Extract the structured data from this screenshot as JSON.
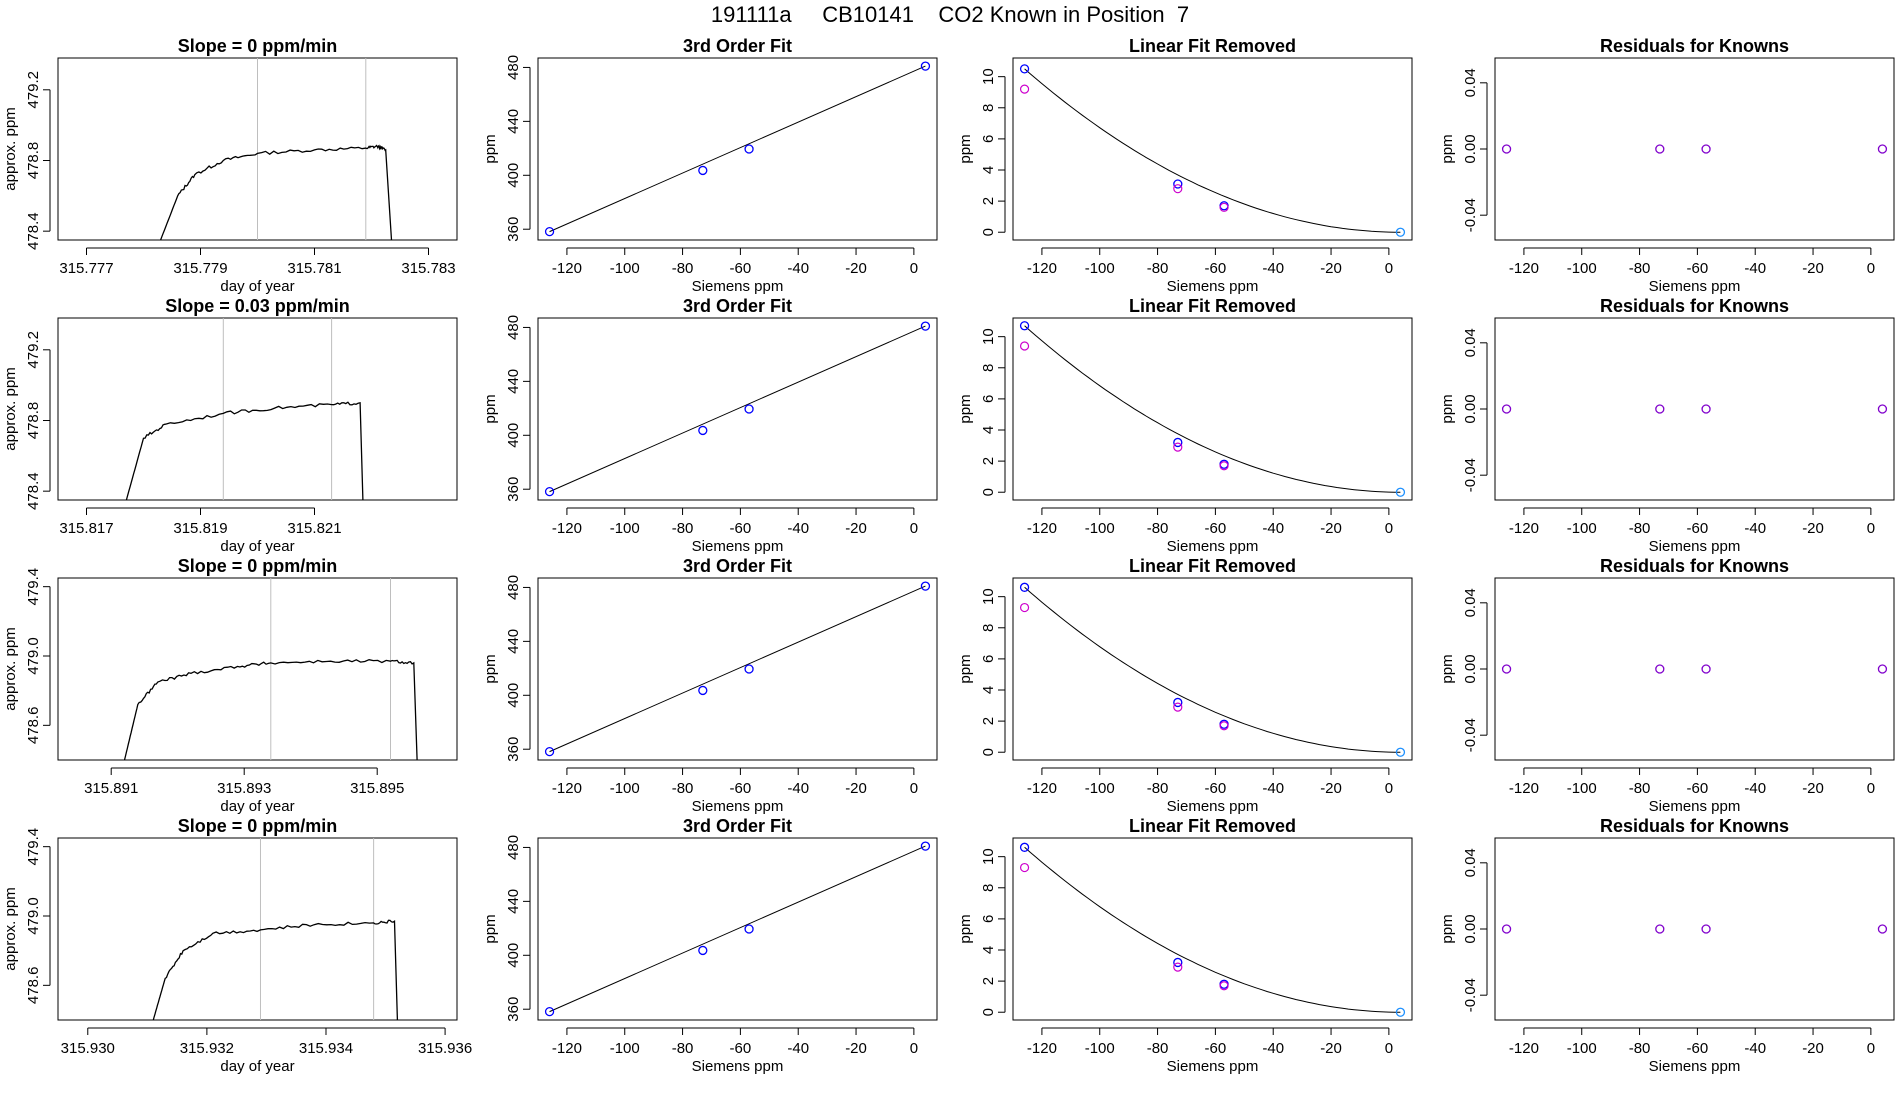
{
  "figure": {
    "title": "191111a     CB10141    CO2 Known in Position  7"
  },
  "colors": {
    "trace": "#000000",
    "vline": "#bebebe",
    "blue": "#0000ff",
    "magenta": "#cd00cd",
    "cyan": "#1e90ff",
    "purple": "#8000cc"
  },
  "chart_data": [
    {
      "type": "line",
      "row": 1,
      "col": 1,
      "title": "Slope =  0  ppm/min",
      "xlabel": "day of year",
      "ylabel": "approx. ppm",
      "xlim": [
        315.7765,
        315.7835
      ],
      "ylim": [
        478.35,
        479.38
      ],
      "xticks": [
        315.777,
        315.779,
        315.781,
        315.783
      ],
      "xtick_labels": [
        "315.777",
        "315.779",
        "315.781",
        "315.783"
      ],
      "yticks": [
        478.4,
        478.8,
        479.2
      ],
      "ytick_labels": [
        "478.4",
        "478.8",
        "479.2"
      ],
      "vlines": [
        315.78,
        315.7819
      ],
      "series": [
        {
          "values": [
            [
              315.7783,
              478.35
            ],
            [
              315.7786,
              478.6
            ],
            [
              315.7789,
              478.72
            ],
            [
              315.7794,
              478.8
            ],
            [
              315.78,
              478.84
            ],
            [
              315.781,
              478.86
            ],
            [
              315.7819,
              478.87
            ],
            [
              315.7821,
              478.88
            ],
            [
              315.78225,
              478.86
            ],
            [
              315.78235,
              478.35
            ]
          ]
        }
      ]
    },
    {
      "type": "scatter",
      "row": 1,
      "col": 2,
      "title": "3rd Order Fit",
      "xlabel": "Siemens ppm",
      "ylabel": "ppm",
      "xlim": [
        -130,
        8
      ],
      "ylim": [
        352,
        487
      ],
      "xticks": [
        -120,
        -100,
        -80,
        -60,
        -40,
        -20,
        0
      ],
      "xtick_labels": [
        "-120",
        "-100",
        "-80",
        "-60",
        "-40",
        "-20",
        "0"
      ],
      "yticks": [
        360,
        400,
        440,
        480
      ],
      "ytick_labels": [
        "360",
        "400",
        "440",
        "480"
      ],
      "series": [
        {
          "values": [
            [
              -126,
              358.2
            ],
            [
              -73,
              403.6
            ],
            [
              -57,
              419.5
            ],
            [
              4,
              481.0
            ]
          ]
        }
      ]
    },
    {
      "type": "scatter",
      "row": 1,
      "col": 3,
      "title": "Linear Fit Removed",
      "xlabel": "Siemens ppm",
      "ylabel": "ppm",
      "xlim": [
        -130,
        8
      ],
      "ylim": [
        -0.5,
        11.2
      ],
      "xticks": [
        -120,
        -100,
        -80,
        -60,
        -40,
        -20,
        0
      ],
      "xtick_labels": [
        "-120",
        "-100",
        "-80",
        "-60",
        "-40",
        "-20",
        "0"
      ],
      "yticks": [
        0,
        2,
        4,
        6,
        8,
        10
      ],
      "ytick_labels": [
        "0",
        "2",
        "4",
        "6",
        "8",
        "10"
      ],
      "series": [
        {
          "values": [
            [
              -126,
              10.5
            ],
            [
              -73,
              3.1
            ],
            [
              -57,
              1.7
            ],
            [
              4,
              0
            ]
          ]
        },
        {
          "values": [
            [
              -126,
              9.2
            ],
            [
              -73,
              2.8
            ],
            [
              -57,
              1.6
            ]
          ]
        }
      ]
    },
    {
      "type": "scatter",
      "row": 1,
      "col": 4,
      "title": "Residuals for Knowns",
      "xlabel": "Siemens ppm",
      "ylabel": "ppm",
      "xlim": [
        -130,
        8
      ],
      "ylim": [
        -0.055,
        0.055
      ],
      "xticks": [
        -120,
        -100,
        -80,
        -60,
        -40,
        -20,
        0
      ],
      "xtick_labels": [
        "-120",
        "-100",
        "-80",
        "-60",
        "-40",
        "-20",
        "0"
      ],
      "yticks": [
        -0.04,
        0.0,
        0.04
      ],
      "ytick_labels": [
        "-0.04",
        "0.00",
        "0.04"
      ],
      "series": [
        {
          "values": [
            [
              -126,
              0
            ],
            [
              -73,
              0
            ],
            [
              -57,
              0
            ],
            [
              4,
              0
            ]
          ]
        }
      ]
    },
    {
      "type": "line",
      "row": 2,
      "col": 1,
      "title": "Slope =  0.03  ppm/min",
      "xlabel": "day of year",
      "ylabel": "approx. ppm",
      "xlim": [
        315.8165,
        315.8235
      ],
      "ylim": [
        478.35,
        479.38
      ],
      "xticks": [
        315.817,
        315.819,
        315.821
      ],
      "xtick_labels": [
        "315.817",
        "315.819",
        "315.821"
      ],
      "vlines": [
        315.8194,
        315.8213
      ],
      "series": [
        {
          "values": [
            [
              315.8177,
              478.35
            ],
            [
              315.818,
              478.7
            ],
            [
              315.8184,
              478.78
            ],
            [
              315.8194,
              478.84
            ],
            [
              315.8203,
              478.87
            ],
            [
              315.8213,
              478.89
            ],
            [
              315.8218,
              478.9
            ],
            [
              315.82185,
              478.35
            ]
          ]
        }
      ],
      "yticks": [
        478.4,
        478.8,
        479.2
      ],
      "ytick_labels": [
        "478.4",
        "478.8",
        "479.2"
      ]
    },
    {
      "type": "scatter",
      "row": 2,
      "col": 2,
      "title": "3rd Order Fit",
      "xlabel": "Siemens ppm",
      "ylabel": "ppm",
      "xlim": [
        -130,
        8
      ],
      "ylim": [
        352,
        487
      ],
      "xticks": [
        -120,
        -100,
        -80,
        -60,
        -40,
        -20,
        0
      ],
      "xtick_labels": [
        "-120",
        "-100",
        "-80",
        "-60",
        "-40",
        "-20",
        "0"
      ],
      "yticks": [
        360,
        400,
        440,
        480
      ],
      "ytick_labels": [
        "360",
        "400",
        "440",
        "480"
      ],
      "series": [
        {
          "values": [
            [
              -126,
              358.2
            ],
            [
              -73,
              403.6
            ],
            [
              -57,
              419.5
            ],
            [
              4,
              481.0
            ]
          ]
        }
      ]
    },
    {
      "type": "scatter",
      "row": 2,
      "col": 3,
      "title": "Linear Fit Removed",
      "xlabel": "Siemens ppm",
      "ylabel": "ppm",
      "xlim": [
        -130,
        8
      ],
      "ylim": [
        -0.5,
        11.2
      ],
      "xticks": [
        -120,
        -100,
        -80,
        -60,
        -40,
        -20,
        0
      ],
      "xtick_labels": [
        "-120",
        "-100",
        "-80",
        "-60",
        "-40",
        "-20",
        "0"
      ],
      "yticks": [
        0,
        2,
        4,
        6,
        8,
        10
      ],
      "ytick_labels": [
        "0",
        "2",
        "4",
        "6",
        "8",
        "10"
      ],
      "series": [
        {
          "values": [
            [
              -126,
              10.7
            ],
            [
              -73,
              3.2
            ],
            [
              -57,
              1.8
            ],
            [
              4,
              0
            ]
          ]
        },
        {
          "values": [
            [
              -126,
              9.4
            ],
            [
              -73,
              2.9
            ],
            [
              -57,
              1.7
            ]
          ]
        }
      ]
    },
    {
      "type": "scatter",
      "row": 2,
      "col": 4,
      "title": "Residuals for Knowns",
      "xlabel": "Siemens ppm",
      "ylabel": "ppm",
      "xlim": [
        -130,
        8
      ],
      "ylim": [
        -0.055,
        0.055
      ],
      "xticks": [
        -120,
        -100,
        -80,
        -60,
        -40,
        -20,
        0
      ],
      "xtick_labels": [
        "-120",
        "-100",
        "-80",
        "-60",
        "-40",
        "-20",
        "0"
      ],
      "yticks": [
        -0.04,
        0.0,
        0.04
      ],
      "ytick_labels": [
        "-0.04",
        "0.00",
        "0.04"
      ],
      "series": [
        {
          "values": [
            [
              -126,
              0
            ],
            [
              -73,
              0
            ],
            [
              -57,
              0
            ],
            [
              4,
              0
            ]
          ]
        }
      ]
    },
    {
      "type": "line",
      "row": 3,
      "col": 1,
      "title": "Slope =  0  ppm/min",
      "xlabel": "day of year",
      "ylabel": "approx. ppm",
      "xlim": [
        315.8902,
        315.8962
      ],
      "ylim": [
        478.4,
        479.45
      ],
      "xticks": [
        315.891,
        315.893,
        315.895
      ],
      "xtick_labels": [
        "315.891",
        "315.893",
        "315.895"
      ],
      "yticks": [
        478.6,
        479.0,
        479.4
      ],
      "ytick_labels": [
        "478.6",
        "479.0",
        "479.4"
      ],
      "vlines": [
        315.8934,
        315.8952
      ],
      "series": [
        {
          "values": [
            [
              315.8912,
              478.4
            ],
            [
              315.8914,
              478.72
            ],
            [
              315.8917,
              478.85
            ],
            [
              315.8922,
              478.9
            ],
            [
              315.8929,
              478.94
            ],
            [
              315.8934,
              478.96
            ],
            [
              315.8943,
              478.97
            ],
            [
              315.8952,
              478.97
            ],
            [
              315.89555,
              478.96
            ],
            [
              315.8956,
              478.4
            ]
          ]
        }
      ]
    },
    {
      "type": "scatter",
      "row": 3,
      "col": 2,
      "title": "3rd Order Fit",
      "xlabel": "Siemens ppm",
      "ylabel": "ppm",
      "xlim": [
        -130,
        8
      ],
      "ylim": [
        352,
        487
      ],
      "xticks": [
        -120,
        -100,
        -80,
        -60,
        -40,
        -20,
        0
      ],
      "xtick_labels": [
        "-120",
        "-100",
        "-80",
        "-60",
        "-40",
        "-20",
        "0"
      ],
      "yticks": [
        360,
        400,
        440,
        480
      ],
      "ytick_labels": [
        "360",
        "400",
        "440",
        "480"
      ],
      "series": [
        {
          "values": [
            [
              -126,
              358.2
            ],
            [
              -73,
              403.6
            ],
            [
              -57,
              419.5
            ],
            [
              4,
              481.0
            ]
          ]
        }
      ]
    },
    {
      "type": "scatter",
      "row": 3,
      "col": 3,
      "title": "Linear Fit Removed",
      "xlabel": "Siemens ppm",
      "ylabel": "ppm",
      "xlim": [
        -130,
        8
      ],
      "ylim": [
        -0.5,
        11.2
      ],
      "xticks": [
        -120,
        -100,
        -80,
        -60,
        -40,
        -20,
        0
      ],
      "xtick_labels": [
        "-120",
        "-100",
        "-80",
        "-60",
        "-40",
        "-20",
        "0"
      ],
      "yticks": [
        0,
        2,
        4,
        6,
        8,
        10
      ],
      "ytick_labels": [
        "0",
        "2",
        "4",
        "6",
        "8",
        "10"
      ],
      "series": [
        {
          "values": [
            [
              -126,
              10.6
            ],
            [
              -73,
              3.2
            ],
            [
              -57,
              1.8
            ],
            [
              4,
              0
            ]
          ]
        },
        {
          "values": [
            [
              -126,
              9.3
            ],
            [
              -73,
              2.9
            ],
            [
              -57,
              1.7
            ]
          ]
        }
      ]
    },
    {
      "type": "scatter",
      "row": 3,
      "col": 4,
      "title": "Residuals for Knowns",
      "xlabel": "Siemens ppm",
      "ylabel": "ppm",
      "xlim": [
        -130,
        8
      ],
      "ylim": [
        -0.055,
        0.055
      ],
      "xticks": [
        -120,
        -100,
        -80,
        -60,
        -40,
        -20,
        0
      ],
      "xtick_labels": [
        "-120",
        "-100",
        "-80",
        "-60",
        "-40",
        "-20",
        "0"
      ],
      "yticks": [
        -0.04,
        0.0,
        0.04
      ],
      "ytick_labels": [
        "-0.04",
        "0.00",
        "0.04"
      ],
      "series": [
        {
          "values": [
            [
              -126,
              0
            ],
            [
              -73,
              0
            ],
            [
              -57,
              0
            ],
            [
              4,
              0
            ]
          ]
        }
      ]
    },
    {
      "type": "line",
      "row": 4,
      "col": 1,
      "title": "Slope =  0  ppm/min",
      "xlabel": "day of year",
      "ylabel": "approx. ppm",
      "xlim": [
        315.9295,
        315.9362
      ],
      "ylim": [
        478.4,
        479.45
      ],
      "xticks": [
        315.93,
        315.932,
        315.934,
        315.936
      ],
      "xtick_labels": [
        "315.930",
        "315.932",
        "315.934",
        "315.936"
      ],
      "yticks": [
        478.6,
        479.0,
        479.4
      ],
      "ytick_labels": [
        "478.6",
        "479.0",
        "479.4"
      ],
      "vlines": [
        315.9329,
        315.9348
      ],
      "series": [
        {
          "values": [
            [
              315.9311,
              478.4
            ],
            [
              315.9313,
              478.64
            ],
            [
              315.9316,
              478.8
            ],
            [
              315.9321,
              478.9
            ],
            [
              315.9329,
              478.92
            ],
            [
              315.9338,
              478.95
            ],
            [
              315.9348,
              478.96
            ],
            [
              315.93515,
              478.97
            ],
            [
              315.9352,
              478.4
            ]
          ]
        }
      ]
    },
    {
      "type": "scatter",
      "row": 4,
      "col": 2,
      "title": "3rd Order Fit",
      "xlabel": "Siemens ppm",
      "ylabel": "ppm",
      "xlim": [
        -130,
        8
      ],
      "ylim": [
        352,
        487
      ],
      "xticks": [
        -120,
        -100,
        -80,
        -60,
        -40,
        -20,
        0
      ],
      "xtick_labels": [
        "-120",
        "-100",
        "-80",
        "-60",
        "-40",
        "-20",
        "0"
      ],
      "yticks": [
        360,
        400,
        440,
        480
      ],
      "ytick_labels": [
        "360",
        "400",
        "440",
        "480"
      ],
      "series": [
        {
          "values": [
            [
              -126,
              358.2
            ],
            [
              -73,
              403.6
            ],
            [
              -57,
              419.5
            ],
            [
              4,
              481.0
            ]
          ]
        }
      ]
    },
    {
      "type": "scatter",
      "row": 4,
      "col": 3,
      "title": "Linear Fit Removed",
      "xlabel": "Siemens ppm",
      "ylabel": "ppm",
      "xlim": [
        -130,
        8
      ],
      "ylim": [
        -0.5,
        11.2
      ],
      "xticks": [
        -120,
        -100,
        -80,
        -60,
        -40,
        -20,
        0
      ],
      "xtick_labels": [
        "-120",
        "-100",
        "-80",
        "-60",
        "-40",
        "-20",
        "0"
      ],
      "yticks": [
        0,
        2,
        4,
        6,
        8,
        10
      ],
      "ytick_labels": [
        "0",
        "2",
        "4",
        "6",
        "8",
        "10"
      ],
      "series": [
        {
          "values": [
            [
              -126,
              10.6
            ],
            [
              -73,
              3.2
            ],
            [
              -57,
              1.8
            ],
            [
              4,
              0
            ]
          ]
        },
        {
          "values": [
            [
              -126,
              9.3
            ],
            [
              -73,
              2.9
            ],
            [
              -57,
              1.7
            ]
          ]
        }
      ]
    },
    {
      "type": "scatter",
      "row": 4,
      "col": 4,
      "title": "Residuals for Knowns",
      "xlabel": "Siemens ppm",
      "ylabel": "ppm",
      "xlim": [
        -130,
        8
      ],
      "ylim": [
        -0.055,
        0.055
      ],
      "xticks": [
        -120,
        -100,
        -80,
        -60,
        -40,
        -20,
        0
      ],
      "xtick_labels": [
        "-120",
        "-100",
        "-80",
        "-60",
        "-40",
        "-20",
        "0"
      ],
      "yticks": [
        -0.04,
        0.0,
        0.04
      ],
      "ytick_labels": [
        "-0.04",
        "0.00",
        "0.04"
      ],
      "series": [
        {
          "values": [
            [
              -126,
              0
            ],
            [
              -73,
              0
            ],
            [
              -57,
              0
            ],
            [
              4,
              0
            ]
          ]
        }
      ]
    }
  ]
}
